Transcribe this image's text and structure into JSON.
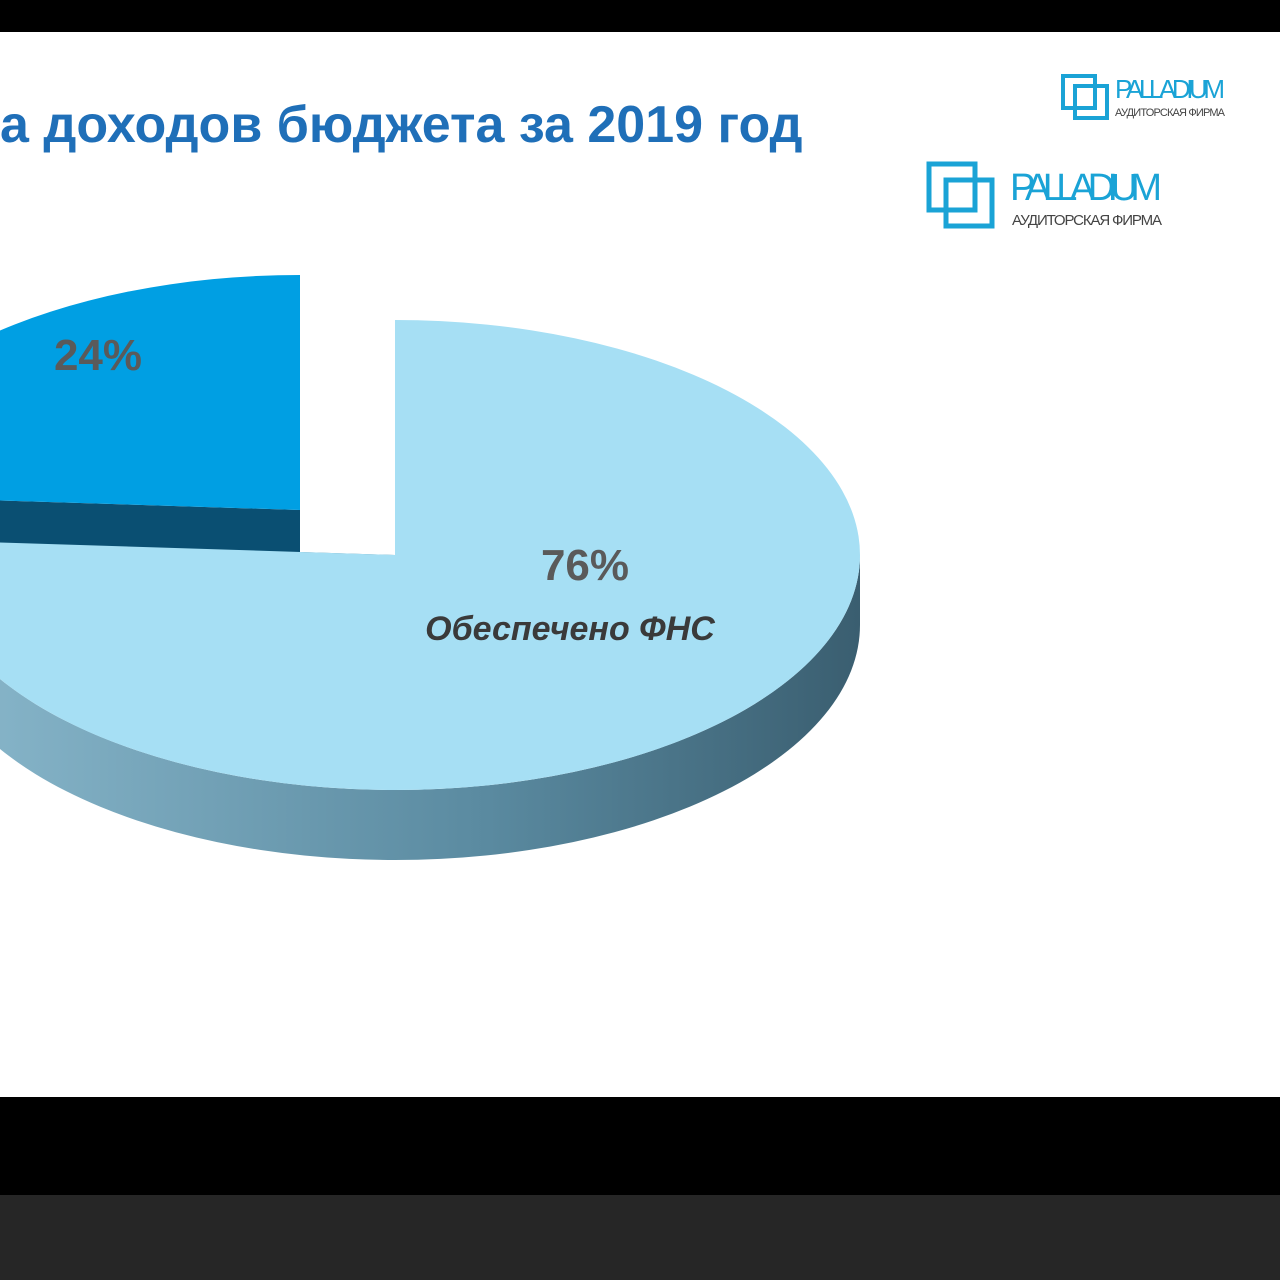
{
  "chart_data": {
    "type": "pie",
    "title": "а доходов бюджета за 2019 год",
    "categories": [
      "Обеспечено ФНС",
      null
    ],
    "values": [
      76,
      24
    ],
    "value_labels": [
      "76%",
      "24%"
    ],
    "colors": [
      "#a6dff4",
      "#009fe3"
    ]
  },
  "logos": [
    {
      "name": "PALLADIUM",
      "subtitle": "АУДИТОРСКАЯ ФИРМА"
    },
    {
      "name": "PALLADIUM",
      "subtitle": "АУДИТОРСКАЯ ФИРМА"
    }
  ]
}
